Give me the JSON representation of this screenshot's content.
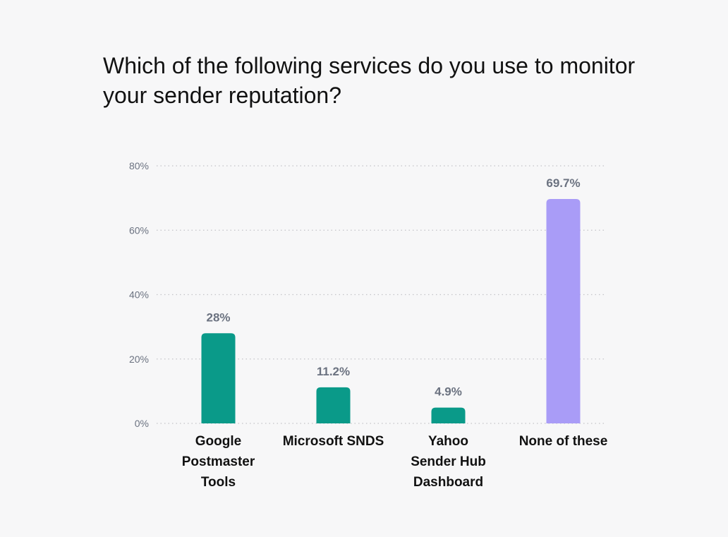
{
  "title": "Which of the following services do you use to monitor your sender reputation?",
  "chart_data": {
    "type": "bar",
    "title": "Which of the following services do you use to monitor your sender reputation?",
    "categories": [
      [
        "Google",
        "Postmaster",
        "Tools"
      ],
      [
        "Microsoft SNDS"
      ],
      [
        "Yahoo",
        "Sender Hub",
        "Dashboard"
      ],
      [
        "None of these"
      ]
    ],
    "values": [
      28,
      11.2,
      4.9,
      69.7
    ],
    "value_labels": [
      "28%",
      "11.2%",
      "4.9%",
      "69.7%"
    ],
    "bar_colors": [
      "#0a9a89",
      "#0a9a89",
      "#0a9a89",
      "#a99cf7"
    ],
    "ylim": [
      0,
      80
    ],
    "yticks": [
      0,
      20,
      40,
      60,
      80
    ],
    "ytick_labels": [
      "0%",
      "20%",
      "40%",
      "60%",
      "80%"
    ],
    "grid": true,
    "xlabel": "",
    "ylabel": ""
  }
}
